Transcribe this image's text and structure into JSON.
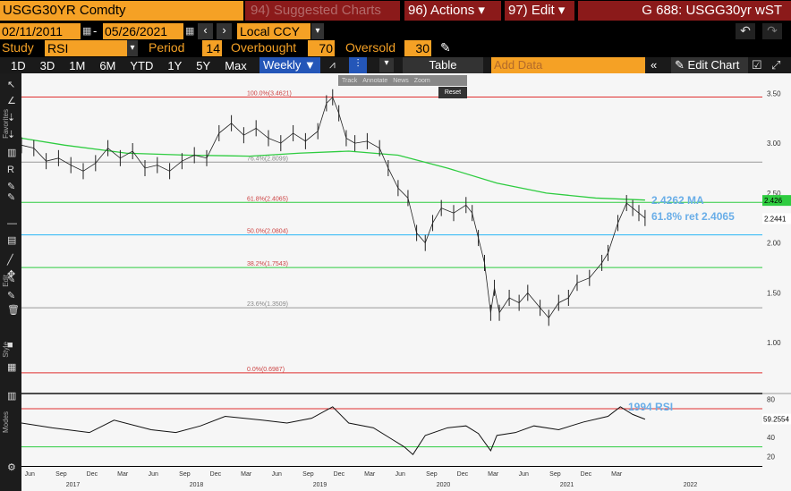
{
  "header": {
    "ticker": "USGG30YR Comdty",
    "menu1": "94) Suggested Charts",
    "menu2": "96) Actions",
    "menu3": "97) Edit",
    "title": "G 688: USGG30yr wST"
  },
  "range": {
    "start": "02/11/2011",
    "end": "05/26/2021",
    "currency": "Local CCY"
  },
  "study": {
    "label": "Study",
    "value": "RSI",
    "period_label": "Period",
    "period": "14",
    "ob_label": "Overbought",
    "ob": "70",
    "os_label": "Oversold",
    "os": "30"
  },
  "toolbar": {
    "periods": [
      "1D",
      "3D",
      "1M",
      "6M",
      "YTD",
      "1Y",
      "5Y",
      "Max"
    ],
    "freq": "Weekly",
    "table": "Table",
    "add_data": "Add Data",
    "edit_chart": "Edit Chart"
  },
  "overlay": {
    "track": "Track",
    "annotate": "Annotate",
    "news": "News",
    "zoom": "Zoom",
    "reset": "Reset"
  },
  "side": {
    "favorites": "Favorites",
    "edit": "Edit",
    "style": "Style",
    "modes": "Modes"
  },
  "annotations": {
    "ma": "2.4262 MA",
    "ret": "61.8% ret 2.4065",
    "rsi": "1994 RSI"
  },
  "fib": [
    {
      "label": "100.0%(3.4621)",
      "value": 3.4621,
      "color": "#e03030"
    },
    {
      "label": "76.4%(2.8099)",
      "value": 2.8099,
      "color": "#999"
    },
    {
      "label": "61.8%(2.4065)",
      "value": 2.4065,
      "color": "#2ecc40"
    },
    {
      "label": "50.0%(2.0804)",
      "value": 2.0804,
      "color": "#29b6f6"
    },
    {
      "label": "38.2%(1.7543)",
      "value": 1.7543,
      "color": "#2ecc40"
    },
    {
      "label": "23.6%(1.3509)",
      "value": 1.3509,
      "color": "#999"
    },
    {
      "label": "0.0%(0.6987)",
      "value": 0.6987,
      "color": "#e03030"
    }
  ],
  "chart_data": {
    "type": "line",
    "title": "",
    "ylim": [
      0.5,
      3.7
    ],
    "yticks": [
      "3.50",
      "3.00",
      "2.50",
      "2.00",
      "1.50",
      "1.00"
    ],
    "ytick_values": [
      3.5,
      3.0,
      2.5,
      2.0,
      1.5,
      1.0
    ],
    "price_tags": [
      {
        "label": "2.426",
        "value": 2.426,
        "color": "#2ecc40"
      },
      {
        "label": "2.2441",
        "value": 2.2441,
        "color": "#fff"
      }
    ],
    "rsi_ticks": [
      "80",
      "60",
      "40",
      "20"
    ],
    "rsi_tick_values": [
      80,
      60,
      40,
      20
    ],
    "rsi_tag": "59.2554",
    "rsi_tag_value": 59.2554,
    "rsi_ylim": [
      10,
      85
    ],
    "overbought": 70,
    "oversold": 30,
    "x_months": [
      "Jun",
      "Sep",
      "Dec",
      "Mar",
      "Jun",
      "Sep",
      "Dec",
      "Mar",
      "Jun",
      "Sep",
      "Dec",
      "Mar",
      "Jun",
      "Sep",
      "Dec",
      "Mar",
      "Jun",
      "Sep",
      "Dec",
      "Mar"
    ],
    "x_years": [
      "2017",
      "2018",
      "2019",
      "2020",
      "2021",
      "2022"
    ],
    "price": [
      [
        2016.35,
        2.98
      ],
      [
        2016.45,
        2.95
      ],
      [
        2016.55,
        2.82
      ],
      [
        2016.65,
        2.85
      ],
      [
        2016.75,
        2.78
      ],
      [
        2016.85,
        2.72
      ],
      [
        2016.95,
        2.8
      ],
      [
        2017.05,
        2.95
      ],
      [
        2017.15,
        2.85
      ],
      [
        2017.25,
        2.92
      ],
      [
        2017.35,
        2.75
      ],
      [
        2017.45,
        2.78
      ],
      [
        2017.55,
        2.72
      ],
      [
        2017.65,
        2.82
      ],
      [
        2017.75,
        2.88
      ],
      [
        2017.85,
        2.85
      ],
      [
        2017.95,
        3.1
      ],
      [
        2018.05,
        3.2
      ],
      [
        2018.15,
        3.08
      ],
      [
        2018.25,
        3.15
      ],
      [
        2018.35,
        3.05
      ],
      [
        2018.45,
        3.0
      ],
      [
        2018.55,
        3.1
      ],
      [
        2018.65,
        3.02
      ],
      [
        2018.75,
        3.12
      ],
      [
        2018.82,
        3.4
      ],
      [
        2018.87,
        3.46
      ],
      [
        2018.92,
        3.3
      ],
      [
        2018.98,
        3.05
      ],
      [
        2019.05,
        3.0
      ],
      [
        2019.15,
        3.02
      ],
      [
        2019.25,
        2.95
      ],
      [
        2019.32,
        2.75
      ],
      [
        2019.4,
        2.55
      ],
      [
        2019.48,
        2.45
      ],
      [
        2019.55,
        2.1
      ],
      [
        2019.62,
        2.0
      ],
      [
        2019.68,
        2.2
      ],
      [
        2019.75,
        2.35
      ],
      [
        2019.85,
        2.3
      ],
      [
        2019.95,
        2.38
      ],
      [
        2020.0,
        2.3
      ],
      [
        2020.05,
        2.05
      ],
      [
        2020.1,
        1.8
      ],
      [
        2020.15,
        1.3
      ],
      [
        2020.18,
        1.55
      ],
      [
        2020.22,
        1.3
      ],
      [
        2020.3,
        1.45
      ],
      [
        2020.38,
        1.4
      ],
      [
        2020.45,
        1.5
      ],
      [
        2020.55,
        1.35
      ],
      [
        2020.62,
        1.25
      ],
      [
        2020.7,
        1.4
      ],
      [
        2020.78,
        1.45
      ],
      [
        2020.85,
        1.6
      ],
      [
        2020.95,
        1.65
      ],
      [
        2021.05,
        1.8
      ],
      [
        2021.1,
        1.9
      ],
      [
        2021.18,
        2.2
      ],
      [
        2021.25,
        2.4
      ],
      [
        2021.3,
        2.35
      ],
      [
        2021.35,
        2.3
      ],
      [
        2021.4,
        2.25
      ]
    ],
    "ma": [
      [
        2016.35,
        3.05
      ],
      [
        2016.7,
        2.98
      ],
      [
        2017.2,
        2.9
      ],
      [
        2017.7,
        2.88
      ],
      [
        2018.2,
        2.87
      ],
      [
        2018.6,
        2.9
      ],
      [
        2019.0,
        2.92
      ],
      [
        2019.4,
        2.88
      ],
      [
        2019.8,
        2.75
      ],
      [
        2020.2,
        2.6
      ],
      [
        2020.6,
        2.5
      ],
      [
        2021.0,
        2.45
      ],
      [
        2021.4,
        2.43
      ]
    ],
    "rsi": [
      [
        2016.35,
        55
      ],
      [
        2016.6,
        50
      ],
      [
        2016.9,
        45
      ],
      [
        2017.1,
        58
      ],
      [
        2017.4,
        48
      ],
      [
        2017.6,
        45
      ],
      [
        2017.8,
        52
      ],
      [
        2018.0,
        62
      ],
      [
        2018.3,
        58
      ],
      [
        2018.5,
        55
      ],
      [
        2018.7,
        60
      ],
      [
        2018.87,
        72
      ],
      [
        2019.0,
        55
      ],
      [
        2019.2,
        50
      ],
      [
        2019.35,
        38
      ],
      [
        2019.45,
        30
      ],
      [
        2019.52,
        22
      ],
      [
        2019.62,
        42
      ],
      [
        2019.8,
        50
      ],
      [
        2019.95,
        52
      ],
      [
        2020.05,
        44
      ],
      [
        2020.15,
        26
      ],
      [
        2020.2,
        42
      ],
      [
        2020.35,
        45
      ],
      [
        2020.5,
        52
      ],
      [
        2020.7,
        48
      ],
      [
        2020.9,
        56
      ],
      [
        2021.1,
        62
      ],
      [
        2021.2,
        72
      ],
      [
        2021.3,
        64
      ],
      [
        2021.4,
        59
      ]
    ]
  }
}
